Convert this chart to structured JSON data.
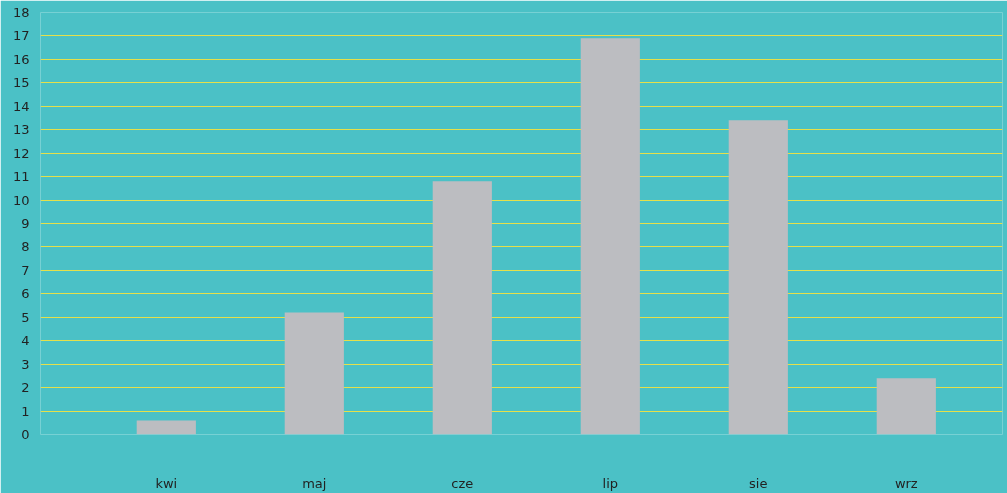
{
  "chart_data": {
    "type": "bar",
    "categories": [
      "kwi",
      "maj",
      "cze",
      "lip",
      "sie",
      "wrz"
    ],
    "values": [
      0.6,
      5.2,
      10.8,
      16.9,
      13.4,
      2.4
    ],
    "color": "#bcbdc1",
    "ylim": [
      0,
      18
    ],
    "yticks": [
      0,
      1,
      2,
      3,
      4,
      5,
      6,
      7,
      8,
      9,
      10,
      11,
      12,
      13,
      14,
      15,
      16,
      17,
      18
    ],
    "grid": "y"
  }
}
